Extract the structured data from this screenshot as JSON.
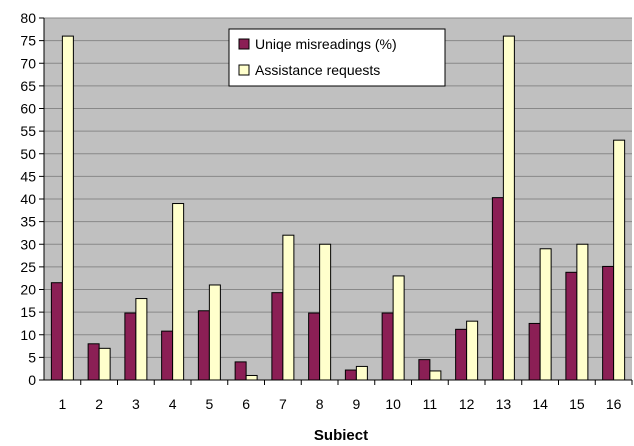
{
  "chart_data": {
    "type": "bar",
    "title": "",
    "xlabel": "Subiect",
    "ylabel": "",
    "ylim": [
      0,
      80
    ],
    "y_tick_step": 5,
    "grid": true,
    "legend_position": "top-center",
    "categories": [
      "1",
      "2",
      "3",
      "4",
      "5",
      "6",
      "7",
      "8",
      "9",
      "10",
      "11",
      "12",
      "13",
      "14",
      "15",
      "16"
    ],
    "series": [
      {
        "name": "Uniqe misreadings (%)",
        "color": "#8b1f55",
        "values": [
          21.5,
          8,
          14.8,
          10.8,
          15.3,
          4,
          19.3,
          14.8,
          2.2,
          14.8,
          4.5,
          11.2,
          40.3,
          12.5,
          23.8,
          25.1
        ]
      },
      {
        "name": "Assistance requests",
        "color": "#ffffcc",
        "values": [
          76,
          7,
          18,
          39,
          21,
          1,
          32,
          30,
          3,
          23,
          2,
          13,
          76,
          29,
          30,
          53
        ]
      }
    ],
    "colors": {
      "plot_background": "#c0c0c0",
      "gridline": "#888888",
      "axis": "#000000"
    }
  }
}
